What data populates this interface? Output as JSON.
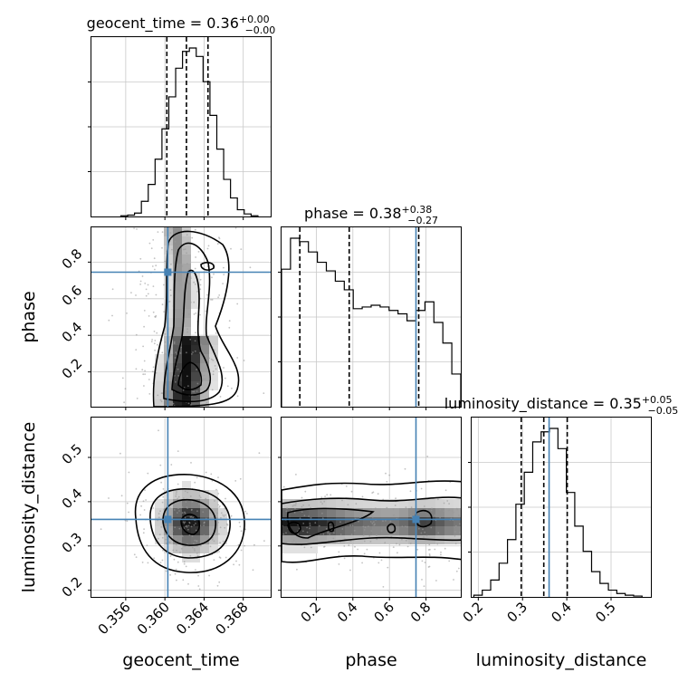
{
  "chart_data": {
    "type": "corner",
    "parameters": [
      "geocent_time",
      "phase",
      "luminosity_distance"
    ],
    "truths": {
      "geocent_time": 0.3603,
      "phase": 0.745,
      "luminosity_distance": 0.36
    },
    "titles": [
      {
        "name": "geocent_time",
        "median": "0.36",
        "plus": "+0.00",
        "minus": "−0.00"
      },
      {
        "name": "phase",
        "median": "0.38",
        "plus": "+0.38",
        "minus": "−0.27"
      },
      {
        "name": "luminosity_distance",
        "median": "0.35",
        "plus": "+0.05",
        "minus": "−0.05"
      }
    ],
    "ranges": {
      "geocent_time": [
        0.3525,
        0.3708
      ],
      "phase": [
        0.01,
        0.99
      ],
      "luminosity_distance": [
        0.185,
        0.59
      ]
    },
    "ticks": {
      "geocent_time": {
        "values": [
          0.356,
          0.36,
          0.364,
          0.368
        ],
        "labels": [
          "0.356",
          "0.360",
          "0.364",
          "0.368"
        ]
      },
      "phase": {
        "values": [
          0.2,
          0.4,
          0.6,
          0.8
        ],
        "labels": [
          "0.2",
          "0.4",
          "0.6",
          "0.8"
        ]
      },
      "luminosity_distance": {
        "values": [
          0.2,
          0.3,
          0.4,
          0.5
        ],
        "labels": [
          "0.2",
          "0.3",
          "0.4",
          "0.5"
        ]
      }
    },
    "quantiles": {
      "geocent_time": [
        0.3602,
        0.3622,
        0.3644
      ],
      "phase": [
        0.11,
        0.38,
        0.76
      ],
      "luminosity_distance": [
        0.297,
        0.348,
        0.401
      ]
    },
    "marginals": {
      "geocent_time": {
        "edges": [
          0.3555,
          0.3562,
          0.3569,
          0.3576,
          0.3583,
          0.359,
          0.3597,
          0.3604,
          0.3611,
          0.3618,
          0.3625,
          0.3632,
          0.3639,
          0.3646,
          0.3653,
          0.366,
          0.3667,
          0.3674,
          0.3681,
          0.3688,
          0.3695
        ],
        "counts": [
          0.004,
          0.008,
          0.02,
          0.09,
          0.19,
          0.34,
          0.52,
          0.71,
          0.88,
          0.98,
          1.0,
          0.95,
          0.8,
          0.6,
          0.4,
          0.22,
          0.11,
          0.04,
          0.015,
          0.004
        ]
      },
      "phase": {
        "edges": [
          0.01,
          0.059,
          0.108,
          0.157,
          0.206,
          0.255,
          0.304,
          0.353,
          0.402,
          0.451,
          0.5,
          0.549,
          0.598,
          0.647,
          0.696,
          0.745,
          0.794,
          0.843,
          0.892,
          0.941,
          0.99
        ],
        "counts": [
          0.8,
          0.98,
          0.96,
          0.9,
          0.84,
          0.79,
          0.73,
          0.68,
          0.57,
          0.58,
          0.59,
          0.58,
          0.56,
          0.54,
          0.5,
          0.56,
          0.61,
          0.49,
          0.37,
          0.19
        ]
      },
      "luminosity_distance": {
        "edges": [
          0.19,
          0.209,
          0.228,
          0.247,
          0.266,
          0.285,
          0.304,
          0.323,
          0.342,
          0.361,
          0.38,
          0.399,
          0.418,
          0.437,
          0.456,
          0.475,
          0.494,
          0.513,
          0.532,
          0.551,
          0.57
        ],
        "counts": [
          0.01,
          0.04,
          0.1,
          0.2,
          0.34,
          0.55,
          0.74,
          0.92,
          0.98,
          1.0,
          0.88,
          0.62,
          0.42,
          0.27,
          0.15,
          0.08,
          0.04,
          0.02,
          0.01,
          0.005
        ]
      }
    },
    "labels": {
      "x": [
        "geocent_time",
        "phase",
        "luminosity_distance"
      ],
      "y": [
        "phase",
        "luminosity_distance"
      ]
    },
    "grid": true
  }
}
